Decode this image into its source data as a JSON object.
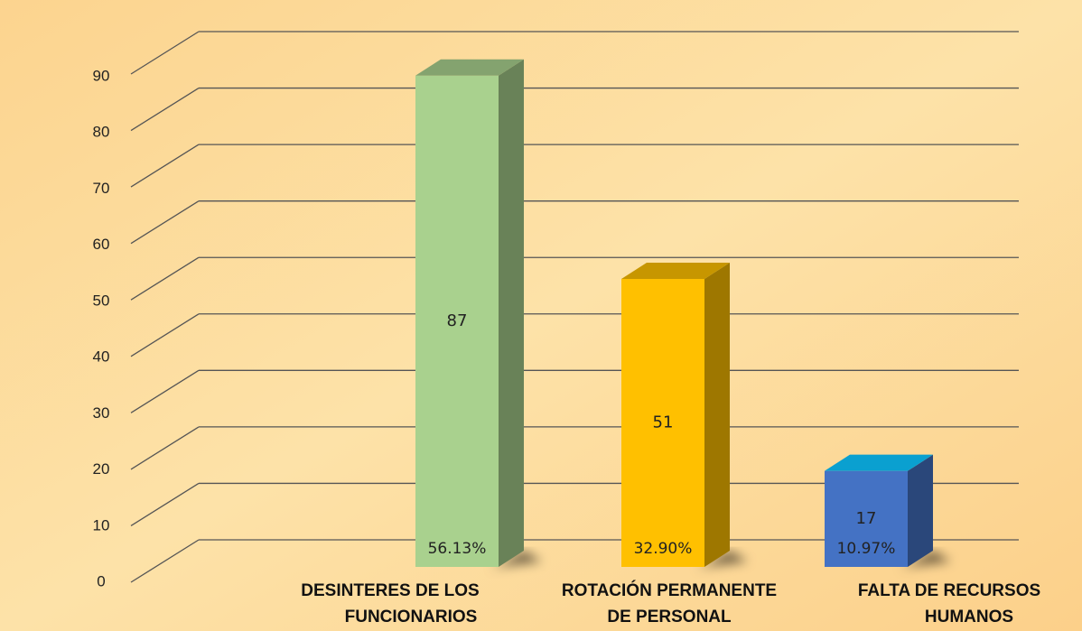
{
  "chart_data": {
    "type": "bar3d",
    "categories": [
      [
        "DESINTERES DE LOS",
        "FUNCIONARIOS"
      ],
      [
        "ROTACIÓN PERMANENTE",
        "DE PERSONAL"
      ],
      [
        "FALTA DE RECURSOS",
        "HUMANOS"
      ]
    ],
    "values": [
      87,
      51,
      17
    ],
    "colors": [
      "#a9d18e",
      "#ffc000",
      "#4472c4"
    ],
    "percentages": {
      "values": [
        56.13,
        32.9,
        10.97
      ],
      "value_labels": [
        "56.13%",
        "32.90%",
        "10.97%"
      ]
    },
    "ylim": [
      0,
      90
    ],
    "yticks": [
      0,
      10,
      20,
      30,
      40,
      50,
      60,
      70,
      80,
      90
    ],
    "grid": true
  }
}
